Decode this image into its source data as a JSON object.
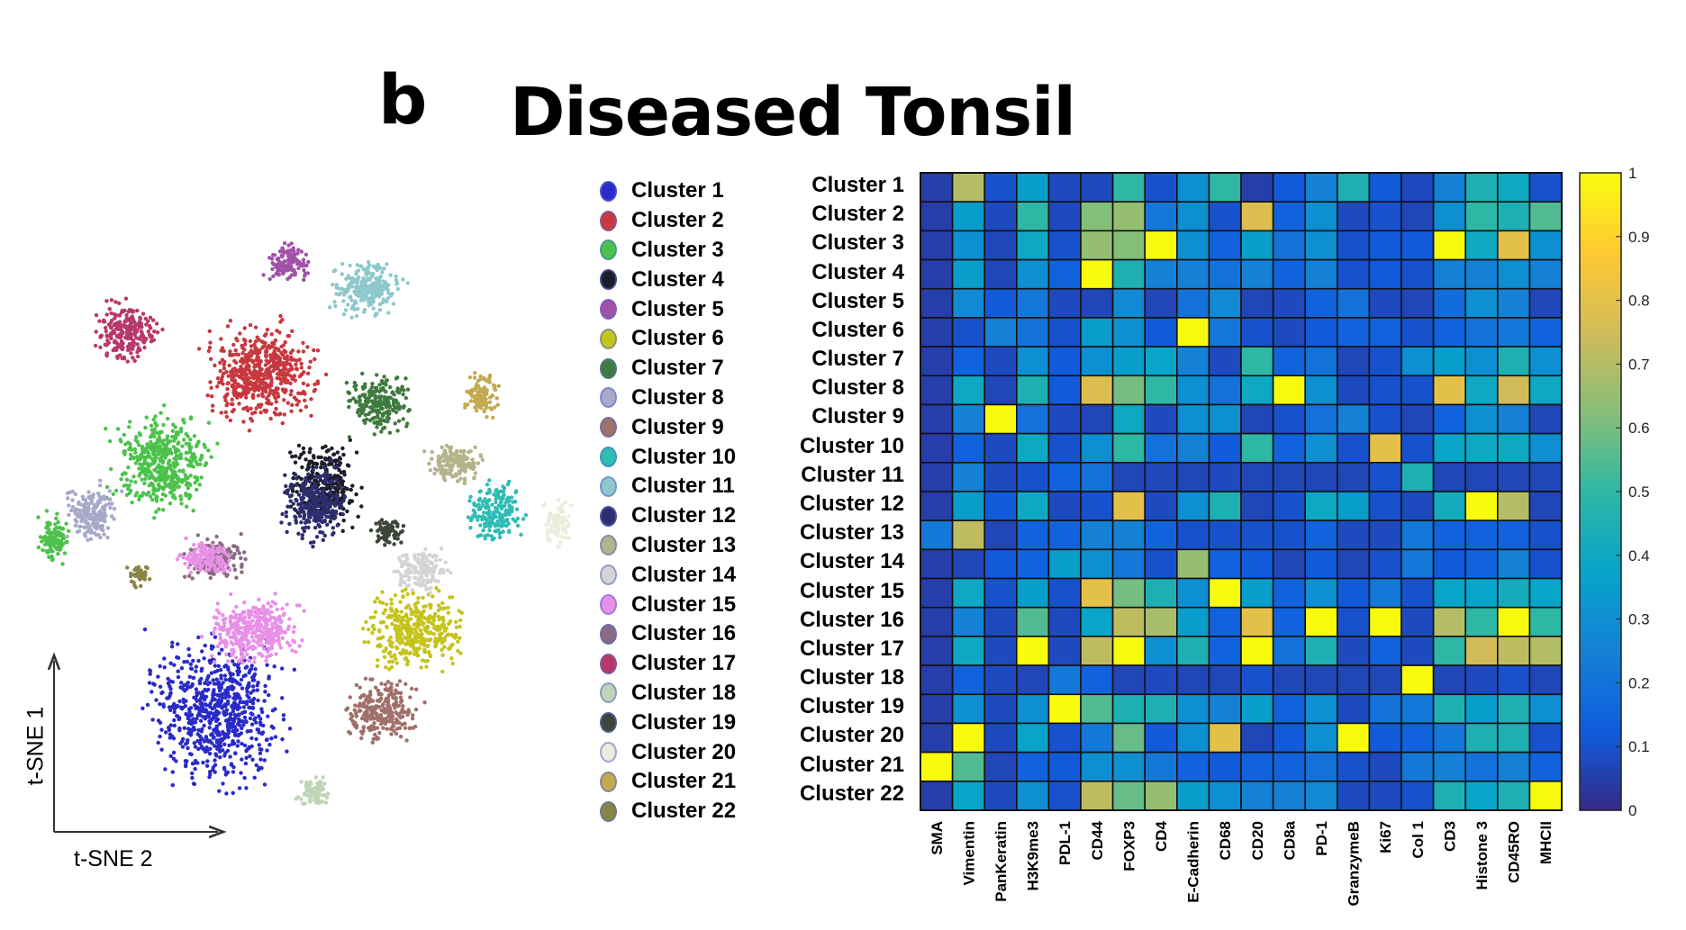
{
  "figure": {
    "panel_letter": "b",
    "title": "Diseased Tonsil"
  },
  "chart_data": [
    {
      "type": "scatter",
      "xlabel": "t-SNE 2",
      "ylabel": "t-SNE 1",
      "grid": false,
      "legend_placement": "right",
      "legend": [
        {
          "name": "Cluster 1",
          "color": "#2a2ac8"
        },
        {
          "name": "Cluster 2",
          "color": "#c8383e"
        },
        {
          "name": "Cluster 3",
          "color": "#4cc24c"
        },
        {
          "name": "Cluster 4",
          "color": "#1c1c2a"
        },
        {
          "name": "Cluster 5",
          "color": "#a052a8"
        },
        {
          "name": "Cluster 6",
          "color": "#c4c41c"
        },
        {
          "name": "Cluster 7",
          "color": "#3f7a3f"
        },
        {
          "name": "Cluster 8",
          "color": "#a8a8c8"
        },
        {
          "name": "Cluster 9",
          "color": "#a0706a"
        },
        {
          "name": "Cluster 10",
          "color": "#2fbcb4"
        },
        {
          "name": "Cluster 11",
          "color": "#8ec8cc"
        },
        {
          "name": "Cluster 12",
          "color": "#2e2e6e"
        },
        {
          "name": "Cluster 13",
          "color": "#b4b48c"
        },
        {
          "name": "Cluster 14",
          "color": "#d4d4d4"
        },
        {
          "name": "Cluster 15",
          "color": "#e890e8"
        },
        {
          "name": "Cluster 16",
          "color": "#8c6a84"
        },
        {
          "name": "Cluster 17",
          "color": "#b83868"
        },
        {
          "name": "Cluster 18",
          "color": "#c0d4b8"
        },
        {
          "name": "Cluster 19",
          "color": "#3e463a"
        },
        {
          "name": "Cluster 20",
          "color": "#ececdc"
        },
        {
          "name": "Cluster 21",
          "color": "#c4aa50"
        },
        {
          "name": "Cluster 22",
          "color": "#8a8444"
        }
      ]
    },
    {
      "type": "heatmap",
      "rows": [
        "Cluster 1",
        "Cluster 2",
        "Cluster 3",
        "Cluster 4",
        "Cluster 5",
        "Cluster 6",
        "Cluster 7",
        "Cluster 8",
        "Cluster 9",
        "Cluster 10",
        "Cluster 11",
        "Cluster 12",
        "Cluster 13",
        "Cluster 14",
        "Cluster 15",
        "Cluster 16",
        "Cluster 17",
        "Cluster 18",
        "Cluster 19",
        "Cluster 20",
        "Cluster 21",
        "Cluster 22"
      ],
      "columns": [
        "SMA",
        "Vimentin",
        "PanKeratin",
        "H3K9me3",
        "PDL-1",
        "CD44",
        "FOXP3",
        "CD4",
        "E-Cadherin",
        "CD68",
        "CD20",
        "CD8a",
        "PD-1",
        "GranzymeB",
        "Ki67",
        "Col 1",
        "CD3",
        "Histone 3",
        "CD45RO",
        "MHCII"
      ],
      "colormap": "parula",
      "clim": [
        0,
        1
      ],
      "colorbar_ticks": [
        "0",
        "0.1",
        "0.2",
        "0.3",
        "0.4",
        "0.5",
        "0.6",
        "0.7",
        "0.8",
        "0.9",
        "1"
      ],
      "values": [
        [
          0.05,
          0.7,
          0.1,
          0.35,
          0.08,
          0.08,
          0.5,
          0.1,
          0.3,
          0.5,
          0.05,
          0.12,
          0.25,
          0.45,
          0.12,
          0.08,
          0.25,
          0.45,
          0.4,
          0.1
        ],
        [
          0.05,
          0.35,
          0.08,
          0.5,
          0.08,
          0.62,
          0.65,
          0.22,
          0.3,
          0.1,
          0.78,
          0.15,
          0.3,
          0.08,
          0.1,
          0.07,
          0.3,
          0.5,
          0.45,
          0.55
        ],
        [
          0.05,
          0.3,
          0.07,
          0.4,
          0.1,
          0.65,
          0.62,
          1.0,
          0.3,
          0.15,
          0.35,
          0.2,
          0.3,
          0.1,
          0.12,
          0.12,
          1.0,
          0.4,
          0.8,
          0.3
        ],
        [
          0.05,
          0.35,
          0.07,
          0.3,
          0.15,
          1.0,
          0.45,
          0.25,
          0.25,
          0.2,
          0.25,
          0.15,
          0.25,
          0.1,
          0.12,
          0.1,
          0.25,
          0.25,
          0.3,
          0.25
        ],
        [
          0.05,
          0.28,
          0.12,
          0.22,
          0.08,
          0.07,
          0.28,
          0.07,
          0.2,
          0.28,
          0.07,
          0.08,
          0.15,
          0.2,
          0.08,
          0.07,
          0.18,
          0.3,
          0.25,
          0.07
        ],
        [
          0.05,
          0.1,
          0.25,
          0.2,
          0.1,
          0.35,
          0.3,
          0.12,
          1.0,
          0.22,
          0.1,
          0.08,
          0.12,
          0.15,
          0.15,
          0.1,
          0.15,
          0.2,
          0.22,
          0.15
        ],
        [
          0.05,
          0.15,
          0.08,
          0.3,
          0.12,
          0.3,
          0.35,
          0.38,
          0.25,
          0.08,
          0.5,
          0.15,
          0.2,
          0.07,
          0.1,
          0.3,
          0.35,
          0.3,
          0.45,
          0.3
        ],
        [
          0.05,
          0.4,
          0.07,
          0.45,
          0.12,
          0.78,
          0.6,
          0.5,
          0.3,
          0.2,
          0.4,
          1.0,
          0.3,
          0.08,
          0.1,
          0.1,
          0.8,
          0.4,
          0.75,
          0.4
        ],
        [
          0.05,
          0.25,
          1.0,
          0.2,
          0.08,
          0.07,
          0.4,
          0.08,
          0.3,
          0.3,
          0.07,
          0.1,
          0.2,
          0.25,
          0.1,
          0.07,
          0.15,
          0.3,
          0.25,
          0.07
        ],
        [
          0.05,
          0.15,
          0.08,
          0.4,
          0.1,
          0.3,
          0.5,
          0.2,
          0.25,
          0.12,
          0.5,
          0.15,
          0.3,
          0.1,
          0.8,
          0.1,
          0.38,
          0.4,
          0.4,
          0.3
        ],
        [
          0.05,
          0.25,
          0.08,
          0.1,
          0.15,
          0.2,
          0.07,
          0.07,
          0.07,
          0.08,
          0.07,
          0.07,
          0.07,
          0.07,
          0.1,
          0.45,
          0.07,
          0.07,
          0.07,
          0.07
        ],
        [
          0.05,
          0.35,
          0.12,
          0.4,
          0.08,
          0.1,
          0.8,
          0.08,
          0.3,
          0.45,
          0.07,
          0.1,
          0.4,
          0.35,
          0.1,
          0.08,
          0.42,
          1.0,
          0.7,
          0.07
        ],
        [
          0.22,
          0.72,
          0.07,
          0.15,
          0.15,
          0.25,
          0.25,
          0.15,
          0.1,
          0.1,
          0.1,
          0.1,
          0.15,
          0.08,
          0.08,
          0.22,
          0.15,
          0.15,
          0.15,
          0.1
        ],
        [
          0.05,
          0.07,
          0.12,
          0.15,
          0.35,
          0.3,
          0.22,
          0.1,
          0.65,
          0.15,
          0.12,
          0.07,
          0.12,
          0.07,
          0.1,
          0.22,
          0.12,
          0.15,
          0.25,
          0.1
        ],
        [
          0.05,
          0.4,
          0.1,
          0.35,
          0.1,
          0.8,
          0.6,
          0.45,
          0.3,
          1.0,
          0.35,
          0.15,
          0.3,
          0.12,
          0.22,
          0.1,
          0.38,
          0.38,
          0.42,
          0.38
        ],
        [
          0.05,
          0.25,
          0.08,
          0.55,
          0.08,
          0.38,
          0.72,
          0.68,
          0.35,
          0.15,
          0.8,
          0.15,
          1.0,
          0.1,
          1.0,
          0.08,
          0.7,
          0.5,
          1.0,
          0.5
        ],
        [
          0.05,
          0.4,
          0.08,
          1.0,
          0.08,
          0.72,
          1.0,
          0.3,
          0.45,
          0.15,
          1.0,
          0.2,
          0.45,
          0.08,
          0.15,
          0.08,
          0.5,
          0.75,
          0.72,
          0.7
        ],
        [
          0.05,
          0.15,
          0.08,
          0.07,
          0.22,
          0.15,
          0.07,
          0.08,
          0.07,
          0.07,
          0.1,
          0.07,
          0.07,
          0.07,
          0.07,
          1.0,
          0.07,
          0.08,
          0.1,
          0.07
        ],
        [
          0.05,
          0.3,
          0.08,
          0.3,
          1.0,
          0.55,
          0.45,
          0.45,
          0.3,
          0.25,
          0.35,
          0.15,
          0.3,
          0.08,
          0.2,
          0.22,
          0.45,
          0.35,
          0.45,
          0.3
        ],
        [
          0.05,
          1.0,
          0.08,
          0.38,
          0.1,
          0.22,
          0.58,
          0.12,
          0.3,
          0.8,
          0.07,
          0.12,
          0.3,
          1.0,
          0.12,
          0.15,
          0.22,
          0.45,
          0.45,
          0.1
        ],
        [
          1.0,
          0.55,
          0.07,
          0.15,
          0.12,
          0.3,
          0.3,
          0.22,
          0.15,
          0.12,
          0.15,
          0.15,
          0.2,
          0.1,
          0.08,
          0.22,
          0.25,
          0.2,
          0.25,
          0.15
        ],
        [
          0.05,
          0.38,
          0.08,
          0.3,
          0.1,
          0.72,
          0.58,
          0.65,
          0.35,
          0.3,
          0.25,
          0.25,
          0.28,
          0.08,
          0.08,
          0.1,
          0.45,
          0.38,
          0.45,
          1.0
        ]
      ]
    }
  ]
}
